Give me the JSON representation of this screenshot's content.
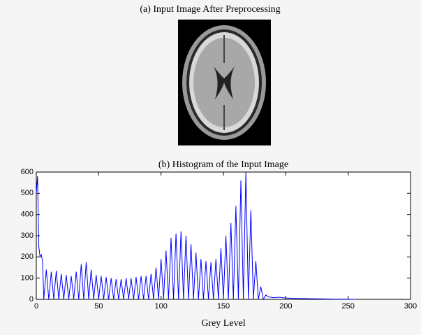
{
  "image": {
    "title": "(a) Input Image After Preprocessing"
  },
  "chart_data": {
    "type": "line",
    "title": "(b) Histogram of the Input Image",
    "x_label": "Grey Level",
    "x": [
      0,
      1,
      2,
      3,
      4,
      5,
      6,
      8,
      10,
      12,
      14,
      16,
      18,
      20,
      22,
      24,
      26,
      28,
      30,
      32,
      34,
      36,
      38,
      40,
      42,
      44,
      46,
      48,
      50,
      52,
      54,
      56,
      58,
      60,
      62,
      64,
      66,
      68,
      70,
      72,
      74,
      76,
      78,
      80,
      82,
      84,
      86,
      88,
      90,
      92,
      94,
      96,
      98,
      100,
      102,
      104,
      106,
      108,
      110,
      112,
      114,
      116,
      118,
      120,
      122,
      124,
      126,
      128,
      130,
      132,
      134,
      136,
      138,
      140,
      142,
      144,
      146,
      148,
      150,
      152,
      154,
      156,
      158,
      160,
      162,
      164,
      166,
      168,
      170,
      172,
      174,
      176,
      178,
      180,
      182,
      184,
      186,
      190,
      195,
      200,
      205,
      210,
      220,
      230,
      240,
      250,
      256
    ],
    "series": [
      {
        "color": "#0000ff",
        "values": [
          500,
          580,
          250,
          200,
          210,
          180,
          0,
          140,
          0,
          130,
          0,
          135,
          0,
          120,
          0,
          115,
          0,
          110,
          0,
          130,
          0,
          165,
          0,
          175,
          0,
          140,
          0,
          115,
          0,
          110,
          0,
          105,
          0,
          100,
          0,
          95,
          0,
          95,
          0,
          100,
          0,
          100,
          0,
          105,
          0,
          110,
          0,
          110,
          0,
          120,
          0,
          150,
          0,
          190,
          0,
          230,
          0,
          290,
          0,
          310,
          0,
          320,
          0,
          300,
          0,
          260,
          0,
          220,
          0,
          190,
          0,
          180,
          0,
          175,
          0,
          190,
          0,
          240,
          0,
          300,
          0,
          360,
          0,
          440,
          0,
          560,
          0,
          600,
          0,
          420,
          0,
          180,
          0,
          60,
          0,
          20,
          12,
          8,
          10,
          6,
          5,
          4,
          3,
          2,
          1,
          1,
          0
        ]
      }
    ],
    "xlim": [
      0,
      300
    ],
    "xticks": [
      0,
      50,
      100,
      150,
      200,
      250,
      300
    ],
    "ylim": [
      0,
      600
    ],
    "yticks": [
      0,
      100,
      200,
      300,
      400,
      500,
      600
    ]
  }
}
